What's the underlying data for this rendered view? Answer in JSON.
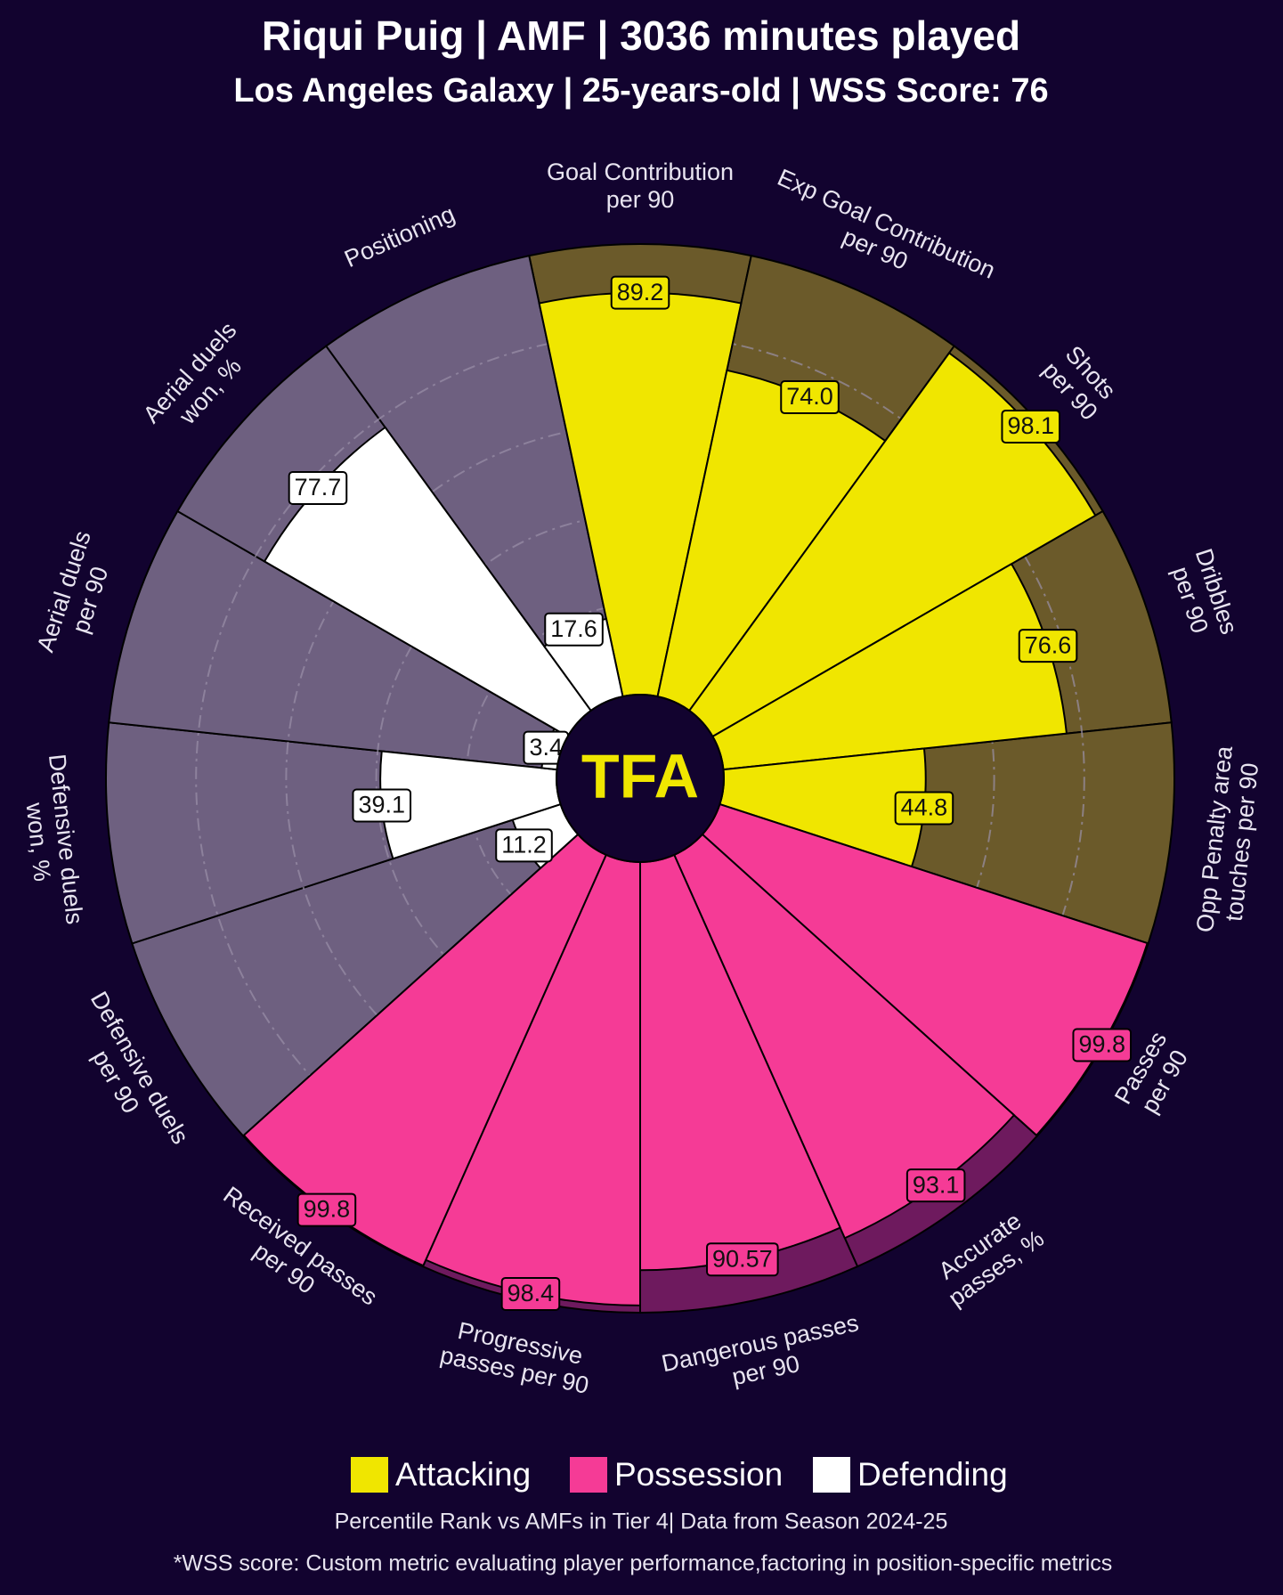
{
  "chart_data": {
    "type": "pizza",
    "title": "Riqui Puig | AMF | 3036 minutes played",
    "subtitle": "Los Angeles Galaxy | 25-years-old | WSS Score: 76",
    "center_text": "TFA",
    "categories": [
      "Goal Contribution\nper 90",
      "Exp Goal Contribution\nper 90",
      "Shots\nper 90",
      "Dribbles\nper 90",
      "Opp Penalty area\ntouches per 90",
      "Passes\nper 90",
      "Accurate\npasses, %",
      "Dangerous passes\nper 90",
      "Progressive\npasses per 90",
      "Received passes\nper 90",
      "Defensive duels\nper 90",
      "Defensive duels\nwon, %",
      "Aerial duels\nper 90",
      "Aerial duels\nwon, %",
      "Positioning"
    ],
    "series": [
      {
        "name": "Attacking",
        "color": "#f0e600",
        "background_color": "#6b5a2a",
        "values": [
          89.2,
          74,
          98.1,
          76.6,
          44.8,
          null,
          null,
          null,
          null,
          null,
          null,
          null,
          null,
          null,
          null
        ],
        "value_labels": [
          null,
          "74.0",
          null,
          null,
          null,
          null,
          null,
          null,
          null,
          null,
          null,
          null,
          null,
          null,
          null
        ]
      },
      {
        "name": "Possession",
        "color": "#f53b96",
        "background_color": "#6e1a5e",
        "values": [
          null,
          null,
          null,
          null,
          null,
          99.8,
          93.1,
          90.57,
          98.4,
          99.8,
          null,
          null,
          null,
          null,
          null
        ]
      },
      {
        "name": "Defending",
        "color": "#ffffff",
        "background_color": "#6e6080",
        "values": [
          null,
          null,
          null,
          null,
          null,
          null,
          null,
          null,
          null,
          null,
          11.2,
          39.1,
          3.4,
          77.7,
          17.6
        ]
      }
    ],
    "ylim": [
      0,
      100
    ],
    "yticks": [
      20,
      40,
      60,
      80
    ],
    "grid": true,
    "notes": [
      "Percentile Rank vs AMFs in Tier 4| Data from Season 2024-25",
      "*WSS score: Custom metric evaluating player performance,factoring in position-specific metrics"
    ]
  }
}
